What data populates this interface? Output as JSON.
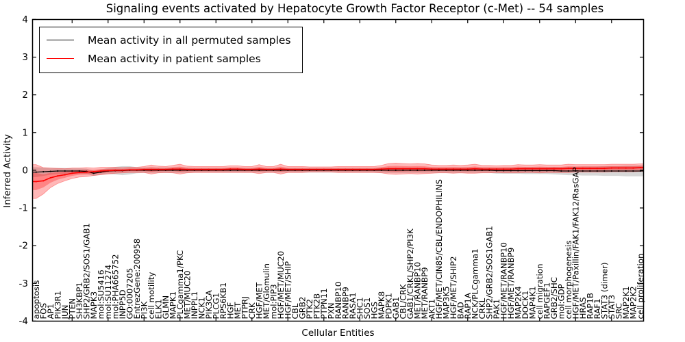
{
  "chart_data": {
    "type": "line",
    "title": "Signaling events activated by Hepatocyte Growth Factor Receptor (c-Met) -- 54 samples",
    "xlabel": "Cellular Entities",
    "ylabel": "Inferred Activity",
    "ylim": [
      -4,
      4
    ],
    "yticks": [
      -4,
      -3,
      -2,
      -1,
      0,
      1,
      2,
      3,
      4
    ],
    "x_tick_step": 5,
    "grid": false,
    "legend_position": "upper left",
    "categories": [
      "apoptosis",
      "FOS",
      "AP1",
      "PIK3R1",
      "JUN",
      "PTEN",
      "SH3KBP1",
      "SHP2/GRB2/SOS1/GAB1",
      "MAPK3",
      "mol:SU5416",
      "mol:SU11274",
      "mol:PHA665752",
      "INPP5D",
      "GO:0007205",
      "EntrezGene:200958",
      "PI3K",
      "cell motility",
      "ELK1",
      "GLMN",
      "MAPK1",
      "PLCgamma1/PKC",
      "MET/MUC20",
      "INPPL1",
      "NCK1",
      "PIK3CA",
      "PLCG1",
      "RPS6KB1",
      "HGF",
      "MET",
      "PTPRJ",
      "CRK",
      "HGF/MET",
      "MET/Glomulin",
      "mol:PIP3",
      "HGF/MET/MUC20",
      "HGF/MET/SHIP",
      "CBL",
      "GRB2",
      "PTK2",
      "PTK2B",
      "PTPN11",
      "PXN",
      "RANBP10",
      "RANBP9",
      "RASA1",
      "SHC1",
      "SOS1",
      "HGS",
      "MAPK8",
      "PDPK1",
      "GAB1",
      "CBL/CRK",
      "GAB1/CRKL/SHP2/PI3K",
      "MET/RANBP10",
      "MET/RANBP9",
      "AKT1",
      "HGF/MET/CIN85/CBL/ENDOPHILINS",
      "MAP3K5",
      "HGF/MET/SHIP2",
      "BAD",
      "RAP1A",
      "NCK/PLCgamma1",
      "CRKL",
      "SHP2/GRB2/SOS1GAB1",
      "PAK1",
      "HGF/MET/RANBP10",
      "HGF/MET/RANBP9",
      "MAP2K4",
      "DOCK1",
      "MAP4K1",
      "cell migration",
      "RAPGEF1",
      "GRB2/SHC",
      "mol:GDP",
      "cell morphogenesis",
      "HGF/MET/Paxillin/FAK1/FAK12/RasGAP",
      "HRAS",
      "RAP1B",
      "RAF1",
      "STAT3 (dimer)",
      "STAT3",
      "SRC",
      "MAP2K1",
      "MAP2K2",
      "cell proliferation"
    ],
    "series": [
      {
        "name": "Mean activity in all permuted samples",
        "color": "#000000",
        "band_color": "#b0b0b0",
        "band_alpha": 0.5,
        "mean": [
          -0.05,
          -0.04,
          -0.03,
          -0.02,
          -0.02,
          -0.02,
          -0.02,
          -0.03,
          -0.08,
          -0.05,
          -0.02,
          -0.01,
          -0.01,
          0,
          0,
          0,
          0,
          0,
          0,
          0,
          0,
          0,
          0,
          0,
          0,
          0,
          0,
          0,
          0,
          0,
          0,
          0,
          0,
          0,
          0,
          0,
          0,
          0,
          0,
          0,
          0,
          0,
          0,
          0,
          0,
          0,
          0,
          0,
          0,
          0,
          0,
          0,
          0,
          0,
          0,
          0,
          0,
          0,
          0,
          0,
          0,
          0,
          0,
          0,
          -0.01,
          -0.01,
          -0.01,
          -0.01,
          -0.01,
          -0.01,
          -0.01,
          -0.01,
          -0.01,
          -0.02,
          -0.02,
          -0.02,
          -0.02,
          -0.02,
          -0.02,
          -0.02,
          -0.02,
          -0.02,
          -0.02,
          -0.02,
          -0.02
        ],
        "std": [
          0.13,
          0.11,
          0.09,
          0.08,
          0.08,
          0.07,
          0.07,
          0.07,
          0.07,
          0.07,
          0.08,
          0.1,
          0.12,
          0.11,
          0.08,
          0.07,
          0.07,
          0.07,
          0.07,
          0.07,
          0.07,
          0.07,
          0.06,
          0.06,
          0.06,
          0.06,
          0.06,
          0.06,
          0.06,
          0.06,
          0.06,
          0.06,
          0.06,
          0.06,
          0.06,
          0.06,
          0.06,
          0.06,
          0.06,
          0.06,
          0.06,
          0.06,
          0.06,
          0.06,
          0.06,
          0.06,
          0.06,
          0.06,
          0.07,
          0.07,
          0.07,
          0.07,
          0.07,
          0.07,
          0.07,
          0.07,
          0.07,
          0.07,
          0.07,
          0.07,
          0.07,
          0.07,
          0.07,
          0.07,
          0.08,
          0.08,
          0.08,
          0.08,
          0.09,
          0.09,
          0.09,
          0.09,
          0.1,
          0.1,
          0.11,
          0.11,
          0.12,
          0.12,
          0.12,
          0.13,
          0.13,
          0.13,
          0.14,
          0.14,
          0.14
        ]
      },
      {
        "name": "Mean activity in patient samples",
        "color": "#ff0000",
        "band_color": "#ff0000",
        "band_alpha": 0.28,
        "mean": [
          -0.3,
          -0.28,
          -0.2,
          -0.15,
          -0.12,
          -0.08,
          -0.06,
          -0.05,
          -0.04,
          -0.02,
          -0.01,
          0,
          0,
          0.01,
          0.01,
          0.02,
          0.02,
          0.02,
          0.02,
          0.03,
          0.03,
          0.02,
          0.02,
          0.02,
          0.02,
          0.02,
          0.02,
          0.03,
          0.03,
          0.02,
          0.02,
          0.03,
          0.02,
          0.02,
          0.03,
          0.02,
          0.02,
          0.02,
          0.02,
          0.02,
          0.02,
          0.02,
          0.02,
          0.02,
          0.02,
          0.02,
          0.02,
          0.02,
          0.03,
          0.04,
          0.04,
          0.04,
          0.04,
          0.04,
          0.04,
          0.03,
          0.03,
          0.03,
          0.03,
          0.03,
          0.03,
          0.04,
          0.03,
          0.03,
          0.03,
          0.03,
          0.03,
          0.04,
          0.04,
          0.04,
          0.04,
          0.04,
          0.04,
          0.04,
          0.05,
          0.05,
          0.05,
          0.05,
          0.05,
          0.05,
          0.06,
          0.06,
          0.06,
          0.06,
          0.07
        ],
        "std": [
          0.45,
          0.35,
          0.26,
          0.2,
          0.16,
          0.14,
          0.12,
          0.12,
          0.1,
          0.1,
          0.09,
          0.08,
          0.07,
          0.07,
          0.07,
          0.08,
          0.12,
          0.09,
          0.08,
          0.1,
          0.13,
          0.09,
          0.08,
          0.08,
          0.08,
          0.08,
          0.08,
          0.09,
          0.09,
          0.08,
          0.08,
          0.12,
          0.08,
          0.08,
          0.13,
          0.08,
          0.08,
          0.08,
          0.07,
          0.07,
          0.07,
          0.07,
          0.08,
          0.08,
          0.08,
          0.08,
          0.08,
          0.08,
          0.1,
          0.14,
          0.15,
          0.14,
          0.13,
          0.14,
          0.13,
          0.11,
          0.1,
          0.1,
          0.11,
          0.1,
          0.11,
          0.12,
          0.1,
          0.1,
          0.09,
          0.1,
          0.1,
          0.11,
          0.1,
          0.1,
          0.11,
          0.1,
          0.1,
          0.1,
          0.11,
          0.1,
          0.1,
          0.1,
          0.1,
          0.1,
          0.1,
          0.1,
          0.1,
          0.1,
          0.1
        ]
      }
    ]
  }
}
